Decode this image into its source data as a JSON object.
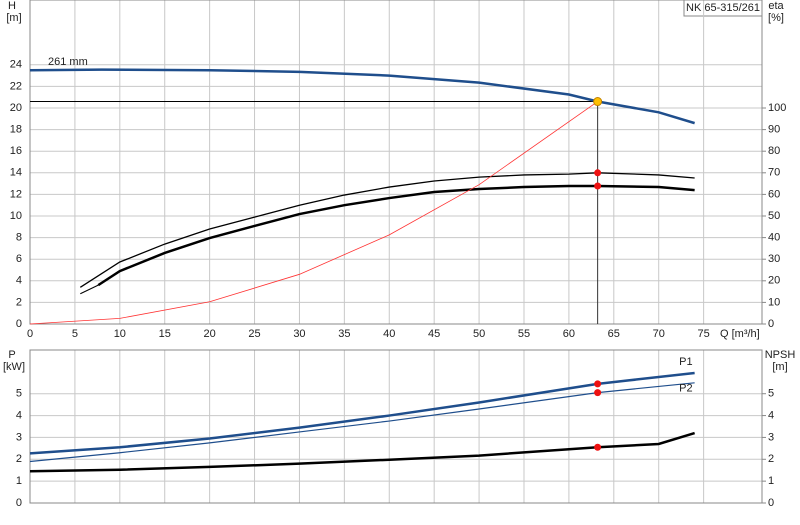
{
  "chart_data": [
    {
      "type": "line",
      "title": "NK 65-315/261",
      "y_label": "H",
      "y_unit": "[m]",
      "y2_label": "eta",
      "y2_unit": "[%]",
      "x_label": "Q [m³/h]",
      "annotation": "261 mm",
      "xlim": [
        0,
        81.5
      ],
      "xticks": [
        0,
        5,
        10,
        15,
        20,
        25,
        30,
        35,
        40,
        45,
        50,
        55,
        60,
        65,
        70,
        75
      ],
      "ylim": [
        0,
        30
      ],
      "yticks": [
        0,
        2,
        4,
        6,
        8,
        10,
        12,
        14,
        16,
        18,
        20,
        22,
        24
      ],
      "y2lim": [
        0,
        150
      ],
      "y2ticks": [
        0,
        10,
        20,
        30,
        40,
        50,
        60,
        70,
        80,
        90,
        100
      ],
      "grid": true,
      "duty_point": {
        "q": 63.2,
        "h": 20.6
      },
      "series": [
        {
          "color": "#1f4e8c",
          "linewidth": 2.5,
          "axis": "y",
          "x": [
            0,
            8,
            20,
            30,
            40,
            50,
            60,
            63.2,
            70,
            74
          ],
          "values": [
            23.5,
            23.55,
            23.5,
            23.35,
            23.0,
            22.35,
            21.25,
            20.6,
            19.6,
            18.6
          ]
        },
        {
          "color": "#000000",
          "linewidth": 1.3,
          "axis": "y2",
          "x": [
            5.6,
            10,
            15,
            20,
            25,
            30,
            35,
            40,
            45,
            50,
            55,
            60,
            63.2,
            70,
            74
          ],
          "values": [
            17,
            28.7,
            37,
            44,
            49.5,
            55,
            59.7,
            63.4,
            66.2,
            68,
            69,
            69.4,
            70,
            69,
            67.6
          ]
        },
        {
          "color": "#000000",
          "linewidth": 1.0,
          "axis": "y2",
          "x": [
            5.6,
            7.6
          ],
          "values": [
            14,
            18
          ]
        },
        {
          "color": "#000000",
          "linewidth": 2.5,
          "axis": "y2",
          "x": [
            7.6,
            10,
            15,
            20,
            25,
            30,
            35,
            40,
            45,
            50,
            55,
            60,
            63.2,
            70,
            74
          ],
          "values": [
            18,
            24.5,
            32.9,
            39.8,
            45.4,
            50.9,
            55,
            58.3,
            61.1,
            62.5,
            63.4,
            63.9,
            63.9,
            63.4,
            62
          ]
        },
        {
          "color": "#ff3333",
          "linewidth": 0.8,
          "axis": "y",
          "x": [
            0,
            10,
            20,
            30,
            40,
            50,
            63.2
          ],
          "values": [
            0,
            0.52,
            2.06,
            4.6,
            8.25,
            12.9,
            20.6
          ]
        }
      ]
    },
    {
      "type": "line",
      "y_label": "P",
      "y_unit": "[kW]",
      "y2_label": "NPSH",
      "y2_unit": "[m]",
      "xlim": [
        0,
        81.5
      ],
      "ylim": [
        0,
        7
      ],
      "yticks": [
        0,
        1,
        2,
        3,
        4,
        5
      ],
      "y2lim": [
        0,
        7
      ],
      "y2ticks": [
        0,
        1,
        2,
        3,
        4,
        5
      ],
      "grid": true,
      "series": [
        {
          "name": "P1",
          "color": "#1f4e8c",
          "linewidth": 2.5,
          "axis": "y",
          "x": [
            0,
            10,
            20,
            30,
            40,
            50,
            63.2,
            74
          ],
          "values": [
            2.27,
            2.55,
            2.95,
            3.45,
            4.0,
            4.6,
            5.45,
            5.95
          ]
        },
        {
          "name": "P2",
          "color": "#1f4e8c",
          "linewidth": 1.2,
          "axis": "y",
          "x": [
            0,
            10,
            20,
            30,
            40,
            50,
            63.2,
            74
          ],
          "values": [
            1.9,
            2.3,
            2.75,
            3.25,
            3.75,
            4.3,
            5.05,
            5.5
          ]
        },
        {
          "color": "#000000",
          "linewidth": 2.5,
          "axis": "y2",
          "x": [
            0,
            10,
            20,
            30,
            40,
            50,
            63.2,
            70,
            74
          ],
          "values": [
            1.45,
            1.52,
            1.65,
            1.8,
            1.98,
            2.17,
            2.55,
            2.7,
            3.2
          ]
        }
      ]
    }
  ]
}
